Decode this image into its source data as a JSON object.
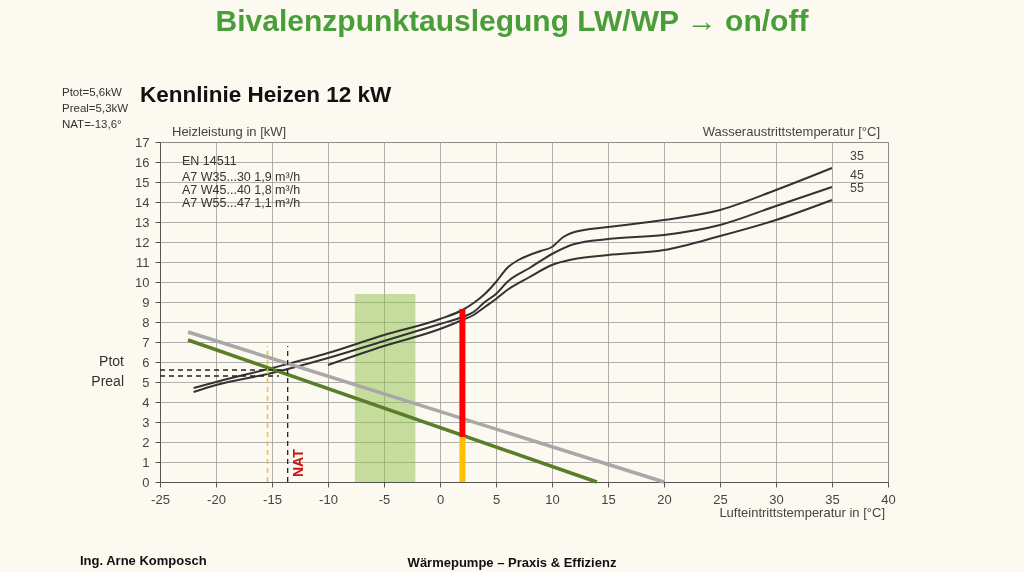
{
  "chart_data": {
    "type": "line",
    "title": "Bivalenzpunktauslegung LW/WP → on/off",
    "subtitle": "Kennlinie Heizen 12 kW",
    "xlabel": "Lufteintrittstemperatur in [°C]",
    "ylabel": "Heizleistung in [kW]",
    "legend_title": "Wasseraustrittstemperatur [°C]",
    "xlim": [
      -25,
      40
    ],
    "ylim": [
      0,
      17
    ],
    "xticks": [
      -25,
      -20,
      -15,
      -10,
      -5,
      0,
      5,
      10,
      15,
      20,
      25,
      30,
      35,
      40
    ],
    "yticks": [
      0,
      1,
      2,
      3,
      4,
      5,
      6,
      7,
      8,
      9,
      10,
      11,
      12,
      13,
      14,
      15,
      16,
      17
    ],
    "grid": true,
    "series": [
      {
        "name": "35",
        "color": "#333333",
        "x": [
          -22,
          -20,
          -15,
          -10,
          -5,
          0,
          2,
          3,
          4,
          5,
          6,
          7,
          8,
          9,
          10,
          11,
          12,
          15,
          20,
          25,
          30,
          35
        ],
        "values": [
          4.7,
          5.0,
          5.7,
          6.45,
          7.35,
          8.15,
          8.6,
          8.95,
          9.4,
          10.0,
          10.7,
          11.1,
          11.35,
          11.55,
          11.75,
          12.25,
          12.5,
          12.75,
          13.1,
          13.6,
          14.6,
          15.7
        ]
      },
      {
        "name": "45",
        "color": "#333333",
        "x": [
          -22,
          -20,
          -15,
          -10,
          -5,
          0,
          2,
          3,
          4,
          5,
          6,
          8,
          10,
          12,
          15,
          20,
          25,
          30,
          35
        ],
        "values": [
          4.5,
          4.85,
          5.45,
          6.2,
          7.05,
          7.9,
          8.25,
          8.5,
          9.0,
          9.4,
          10.0,
          10.7,
          11.4,
          11.9,
          12.15,
          12.35,
          12.85,
          13.8,
          14.75
        ]
      },
      {
        "name": "55",
        "color": "#333333",
        "x": [
          -10,
          -5,
          0,
          2,
          3,
          4,
          5,
          6,
          8,
          10,
          12,
          15,
          20,
          25,
          30,
          35
        ],
        "values": [
          5.85,
          6.8,
          7.65,
          8.1,
          8.35,
          8.75,
          9.15,
          9.6,
          10.25,
          10.85,
          11.15,
          11.35,
          11.6,
          12.3,
          13.1,
          14.1
        ]
      },
      {
        "color": "#a8a8a8",
        "x": [
          -22.5,
          20
        ],
        "values": [
          7.5,
          0
        ]
      },
      {
        "color": "#5a7d2a",
        "x": [
          -22.5,
          14
        ],
        "values": [
          7.1,
          0
        ]
      },
      {
        "type": "area",
        "color": "#8dc04a",
        "x": [
          -7.6,
          -2.2
        ],
        "values": [
          9.4,
          9.4
        ]
      },
      {
        "name": "Ptot",
        "color": "#222222",
        "line_style": "dashed",
        "x": [
          -25,
          -13.6
        ],
        "values": [
          5.6,
          5.6
        ]
      },
      {
        "name": "Preal",
        "color": "#222222",
        "line_style": "dashed",
        "x": [
          -25,
          -14.4
        ],
        "values": [
          5.3,
          5.3
        ]
      },
      {
        "color": "#f2c230",
        "line_style": "dashed",
        "x": [
          -15.4,
          -15.4
        ],
        "values": [
          0,
          6.8
        ]
      },
      {
        "name": "NAT",
        "color": "#222222",
        "line_style": "dashed",
        "x": [
          -13.6,
          -13.6
        ],
        "values": [
          0,
          6.8
        ]
      },
      {
        "color": "#ffc000",
        "x": [
          2,
          2
        ],
        "values": [
          0,
          2.25
        ]
      },
      {
        "color": "#ff0000",
        "x": [
          2,
          2
        ],
        "values": [
          2.25,
          8.65
        ]
      }
    ],
    "annotations": [
      "Ptot=5,6kW",
      "Preal=5,3kW",
      "NAT=-13,6°",
      "EN 14511",
      "A7 W35...30  1,9 m³/h",
      "A7 W45...40  1,8 m³/h",
      "A7 W55...47  1,1 m³/h",
      "Ing. Arne Komposch",
      "Wärmepumpe – Praxis & Effizienz"
    ]
  }
}
